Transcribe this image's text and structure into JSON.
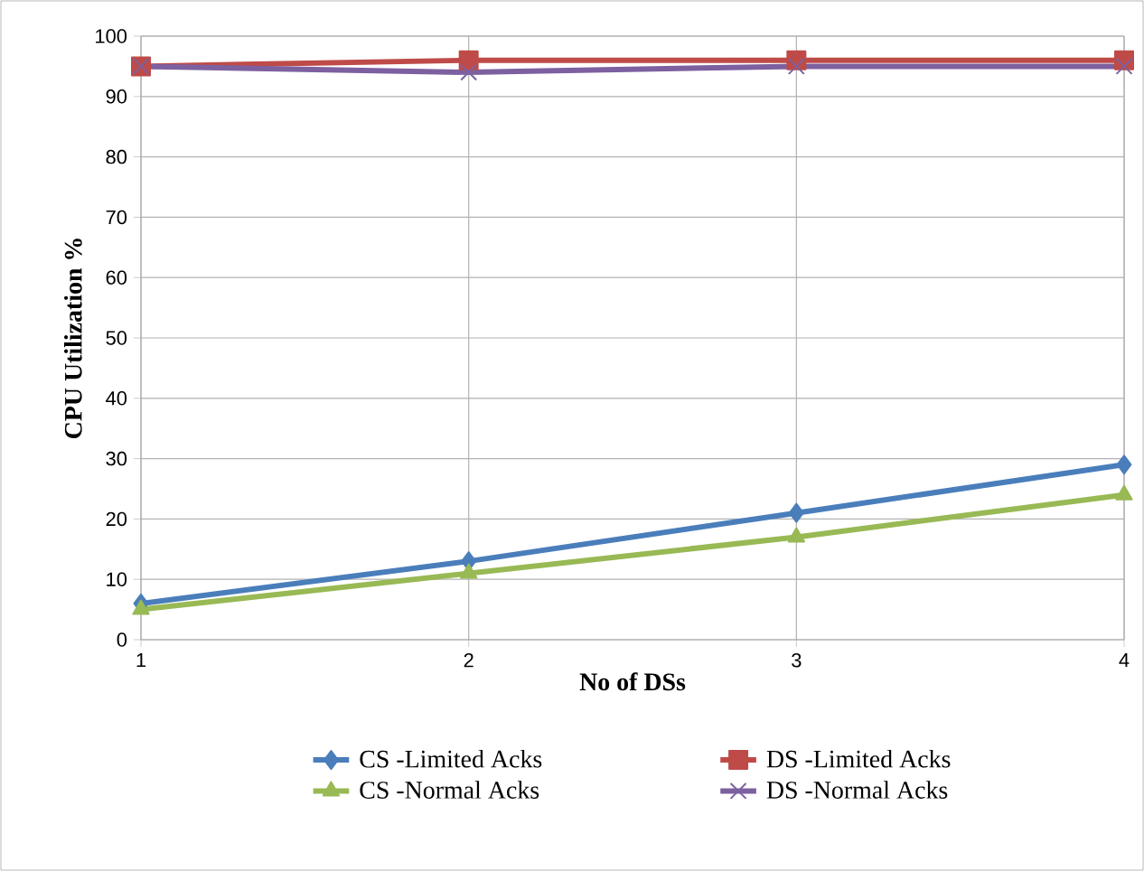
{
  "chart_data": {
    "type": "line",
    "xlabel": "No of DSs",
    "ylabel": "CPU Utilization %",
    "x": [
      1,
      2,
      3,
      4
    ],
    "xlim": [
      1,
      4
    ],
    "xticks": [
      1,
      2,
      3,
      4
    ],
    "ylim": [
      0,
      100
    ],
    "yticks": [
      0,
      10,
      20,
      30,
      40,
      50,
      60,
      70,
      80,
      90,
      100
    ],
    "grid": true,
    "legend": "bottom",
    "line_style": "solid",
    "series": [
      {
        "name": "CS -Limited Acks",
        "color": "#4a7ebb",
        "marker": "diamond",
        "values": [
          6,
          13,
          21,
          29
        ]
      },
      {
        "name": "DS -Limited Acks",
        "color": "#be4b48",
        "marker": "square",
        "values": [
          95,
          96,
          96,
          96
        ]
      },
      {
        "name": "CS -Normal Acks",
        "color": "#98b954",
        "marker": "triangle",
        "values": [
          5,
          11,
          17,
          24
        ]
      },
      {
        "name": "DS -Normal Acks",
        "color": "#7d60a0",
        "marker": "cross",
        "values": [
          95,
          94,
          95,
          95
        ]
      }
    ]
  }
}
